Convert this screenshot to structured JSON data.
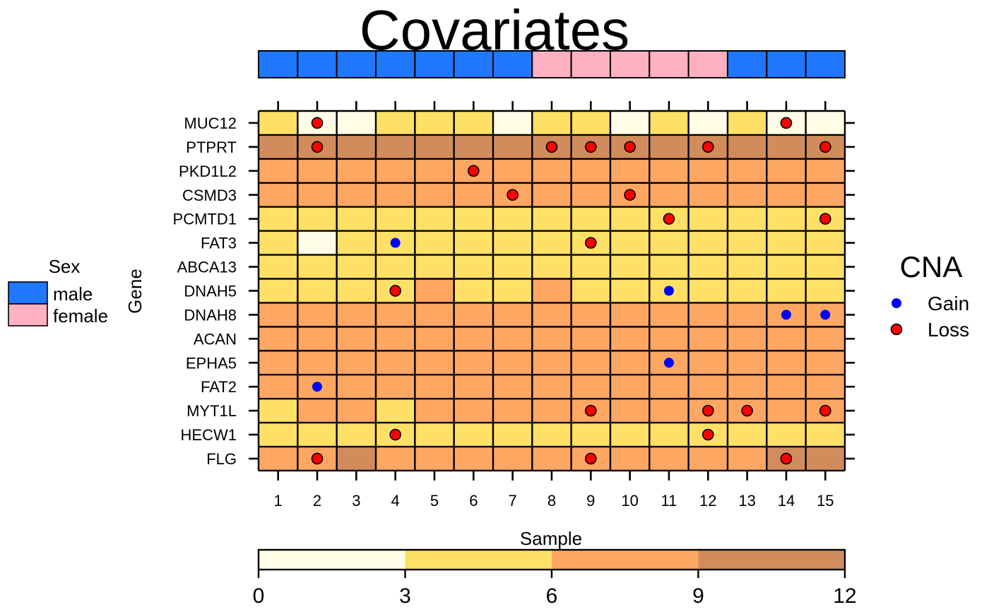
{
  "chart_data": {
    "type": "heatmap",
    "title": "Covariates",
    "xlabel": "Sample",
    "ylabel": "Gene",
    "samples": [
      "1",
      "2",
      "3",
      "4",
      "5",
      "6",
      "7",
      "8",
      "9",
      "10",
      "11",
      "12",
      "13",
      "14",
      "15"
    ],
    "genes": [
      "MUC12",
      "PTPRT",
      "PKD1L2",
      "CSMD3",
      "PCMTD1",
      "FAT3",
      "ABCA13",
      "DNAH5",
      "DNAH8",
      "ACAN",
      "EPHA5",
      "FAT2",
      "MYT1L",
      "HECW1",
      "FLG"
    ],
    "color_scale": {
      "breaks": [
        0,
        3,
        6,
        9,
        12
      ],
      "tick_labels": [
        "0",
        "3",
        "6",
        "9",
        "12"
      ],
      "colors": [
        "#FFFDE6",
        "#FDE065",
        "#FDA762",
        "#D28C5C"
      ]
    },
    "bins": [
      [
        1,
        0,
        0,
        1,
        1,
        1,
        0,
        1,
        1,
        0,
        1,
        0,
        1,
        0,
        0
      ],
      [
        3,
        3,
        3,
        3,
        3,
        3,
        3,
        3,
        3,
        3,
        3,
        3,
        3,
        3,
        3
      ],
      [
        2,
        2,
        2,
        2,
        2,
        2,
        2,
        2,
        2,
        2,
        2,
        2,
        2,
        2,
        2
      ],
      [
        2,
        2,
        2,
        2,
        2,
        2,
        2,
        2,
        2,
        2,
        2,
        2,
        2,
        2,
        2
      ],
      [
        1,
        1,
        1,
        1,
        1,
        1,
        1,
        1,
        1,
        1,
        1,
        1,
        1,
        1,
        1
      ],
      [
        1,
        0,
        1,
        1,
        1,
        1,
        1,
        1,
        1,
        1,
        1,
        1,
        1,
        1,
        1
      ],
      [
        1,
        1,
        1,
        1,
        1,
        1,
        1,
        1,
        1,
        1,
        1,
        1,
        1,
        1,
        1
      ],
      [
        1,
        1,
        1,
        1,
        2,
        1,
        1,
        2,
        1,
        1,
        1,
        1,
        1,
        1,
        1
      ],
      [
        2,
        2,
        2,
        2,
        2,
        2,
        2,
        2,
        2,
        2,
        2,
        2,
        2,
        2,
        2
      ],
      [
        2,
        2,
        2,
        2,
        2,
        2,
        2,
        2,
        2,
        2,
        2,
        2,
        2,
        2,
        2
      ],
      [
        2,
        2,
        2,
        2,
        2,
        2,
        2,
        2,
        2,
        2,
        2,
        2,
        2,
        2,
        2
      ],
      [
        2,
        2,
        2,
        2,
        2,
        2,
        2,
        2,
        2,
        2,
        2,
        2,
        2,
        2,
        2
      ],
      [
        1,
        2,
        2,
        1,
        2,
        2,
        2,
        2,
        2,
        2,
        2,
        2,
        2,
        2,
        2
      ],
      [
        1,
        1,
        1,
        1,
        1,
        1,
        1,
        1,
        1,
        1,
        1,
        1,
        1,
        1,
        1
      ],
      [
        2,
        2,
        3,
        2,
        2,
        2,
        2,
        2,
        2,
        2,
        2,
        2,
        2,
        3,
        3
      ]
    ],
    "cna_points": [
      {
        "gene": "MUC12",
        "sample": 2,
        "type": "Loss"
      },
      {
        "gene": "MUC12",
        "sample": 14,
        "type": "Loss"
      },
      {
        "gene": "PTPRT",
        "sample": 2,
        "type": "Loss"
      },
      {
        "gene": "PTPRT",
        "sample": 8,
        "type": "Loss"
      },
      {
        "gene": "PTPRT",
        "sample": 9,
        "type": "Loss"
      },
      {
        "gene": "PTPRT",
        "sample": 10,
        "type": "Loss"
      },
      {
        "gene": "PTPRT",
        "sample": 12,
        "type": "Loss"
      },
      {
        "gene": "PTPRT",
        "sample": 15,
        "type": "Loss"
      },
      {
        "gene": "PKD1L2",
        "sample": 6,
        "type": "Loss"
      },
      {
        "gene": "CSMD3",
        "sample": 7,
        "type": "Loss"
      },
      {
        "gene": "CSMD3",
        "sample": 10,
        "type": "Loss"
      },
      {
        "gene": "PCMTD1",
        "sample": 11,
        "type": "Loss"
      },
      {
        "gene": "PCMTD1",
        "sample": 15,
        "type": "Loss"
      },
      {
        "gene": "FAT3",
        "sample": 4,
        "type": "Gain"
      },
      {
        "gene": "FAT3",
        "sample": 9,
        "type": "Loss"
      },
      {
        "gene": "DNAH5",
        "sample": 4,
        "type": "Loss"
      },
      {
        "gene": "DNAH5",
        "sample": 11,
        "type": "Gain"
      },
      {
        "gene": "DNAH8",
        "sample": 14,
        "type": "Gain"
      },
      {
        "gene": "DNAH8",
        "sample": 15,
        "type": "Gain"
      },
      {
        "gene": "EPHA5",
        "sample": 11,
        "type": "Gain"
      },
      {
        "gene": "FAT2",
        "sample": 2,
        "type": "Gain"
      },
      {
        "gene": "MYT1L",
        "sample": 9,
        "type": "Loss"
      },
      {
        "gene": "MYT1L",
        "sample": 12,
        "type": "Loss"
      },
      {
        "gene": "MYT1L",
        "sample": 13,
        "type": "Loss"
      },
      {
        "gene": "MYT1L",
        "sample": 15,
        "type": "Loss"
      },
      {
        "gene": "HECW1",
        "sample": 4,
        "type": "Loss"
      },
      {
        "gene": "HECW1",
        "sample": 12,
        "type": "Loss"
      },
      {
        "gene": "FLG",
        "sample": 2,
        "type": "Loss"
      },
      {
        "gene": "FLG",
        "sample": 9,
        "type": "Loss"
      },
      {
        "gene": "FLG",
        "sample": 14,
        "type": "Loss"
      }
    ],
    "covariate": {
      "name": "Sex",
      "levels": [
        {
          "label": "male",
          "color": "#1F78FF"
        },
        {
          "label": "female",
          "color": "#FFB0C1"
        }
      ],
      "values": [
        "male",
        "male",
        "male",
        "male",
        "male",
        "male",
        "male",
        "female",
        "female",
        "female",
        "female",
        "female",
        "male",
        "male",
        "male"
      ]
    },
    "cna_legend": {
      "title": "CNA",
      "entries": [
        {
          "label": "Gain",
          "color": "#0000FF"
        },
        {
          "label": "Loss",
          "color": "#FF0000"
        }
      ]
    }
  }
}
